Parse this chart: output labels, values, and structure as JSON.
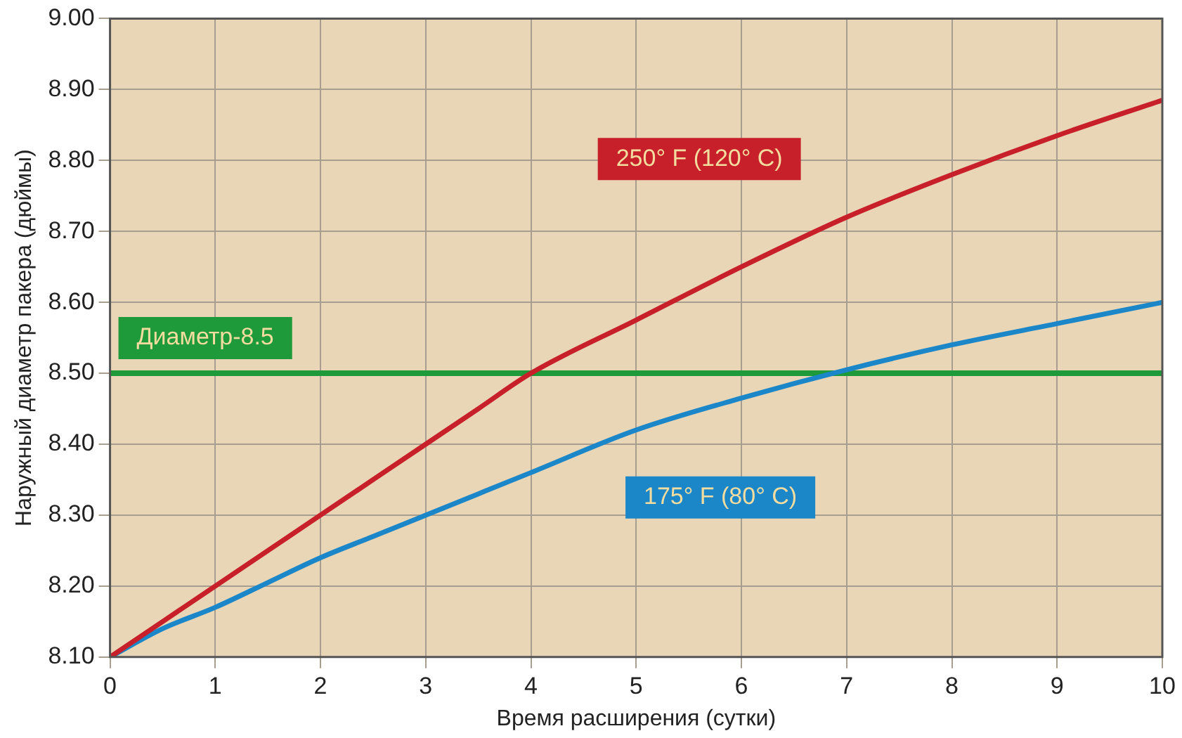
{
  "chart_data": {
    "type": "line",
    "xlabel": "Время расширения (сутки)",
    "ylabel": "Наружный диаметр пакера (дюймы)",
    "x": [
      0,
      0.5,
      1,
      1.5,
      2,
      2.5,
      3,
      3.5,
      4,
      5,
      6,
      7,
      8,
      9,
      10
    ],
    "series": [
      {
        "name": "250° F (120° C)",
        "color": "#c8202a",
        "values": [
          8.1,
          8.15,
          8.2,
          8.25,
          8.3,
          8.35,
          8.4,
          8.45,
          8.5,
          8.575,
          8.65,
          8.72,
          8.78,
          8.835,
          8.885
        ]
      },
      {
        "name": "175° F (80° C)",
        "color": "#1b87c9",
        "values": [
          8.1,
          8.14,
          8.17,
          8.205,
          8.24,
          8.27,
          8.3,
          8.33,
          8.36,
          8.42,
          8.465,
          8.505,
          8.54,
          8.57,
          8.6
        ]
      }
    ],
    "xlim": [
      0,
      10
    ],
    "xticks": [
      0,
      1,
      2,
      3,
      4,
      5,
      6,
      7,
      8,
      9,
      10
    ],
    "ylim": [
      8.1,
      9.0
    ],
    "yticks": [
      {
        "value": 8.1,
        "label": "8.10"
      },
      {
        "value": 8.2,
        "label": "8.20"
      },
      {
        "value": 8.3,
        "label": "8.30"
      },
      {
        "value": 8.4,
        "label": "8.40"
      },
      {
        "value": 8.5,
        "label": "8.50"
      },
      {
        "value": 8.6,
        "label": "8.60"
      },
      {
        "value": 8.7,
        "label": "8.70"
      },
      {
        "value": 8.8,
        "label": "8.80"
      },
      {
        "value": 8.9,
        "label": "8.90"
      },
      {
        "value": 9.0,
        "label": "9.00"
      }
    ],
    "ref_lines": [
      {
        "axis": "y",
        "value": 8.5,
        "label": "Диаметр-8.5",
        "color": "#1f9a3a"
      }
    ],
    "grid": true,
    "legend": false,
    "marker": "none",
    "line_style": "solid"
  }
}
